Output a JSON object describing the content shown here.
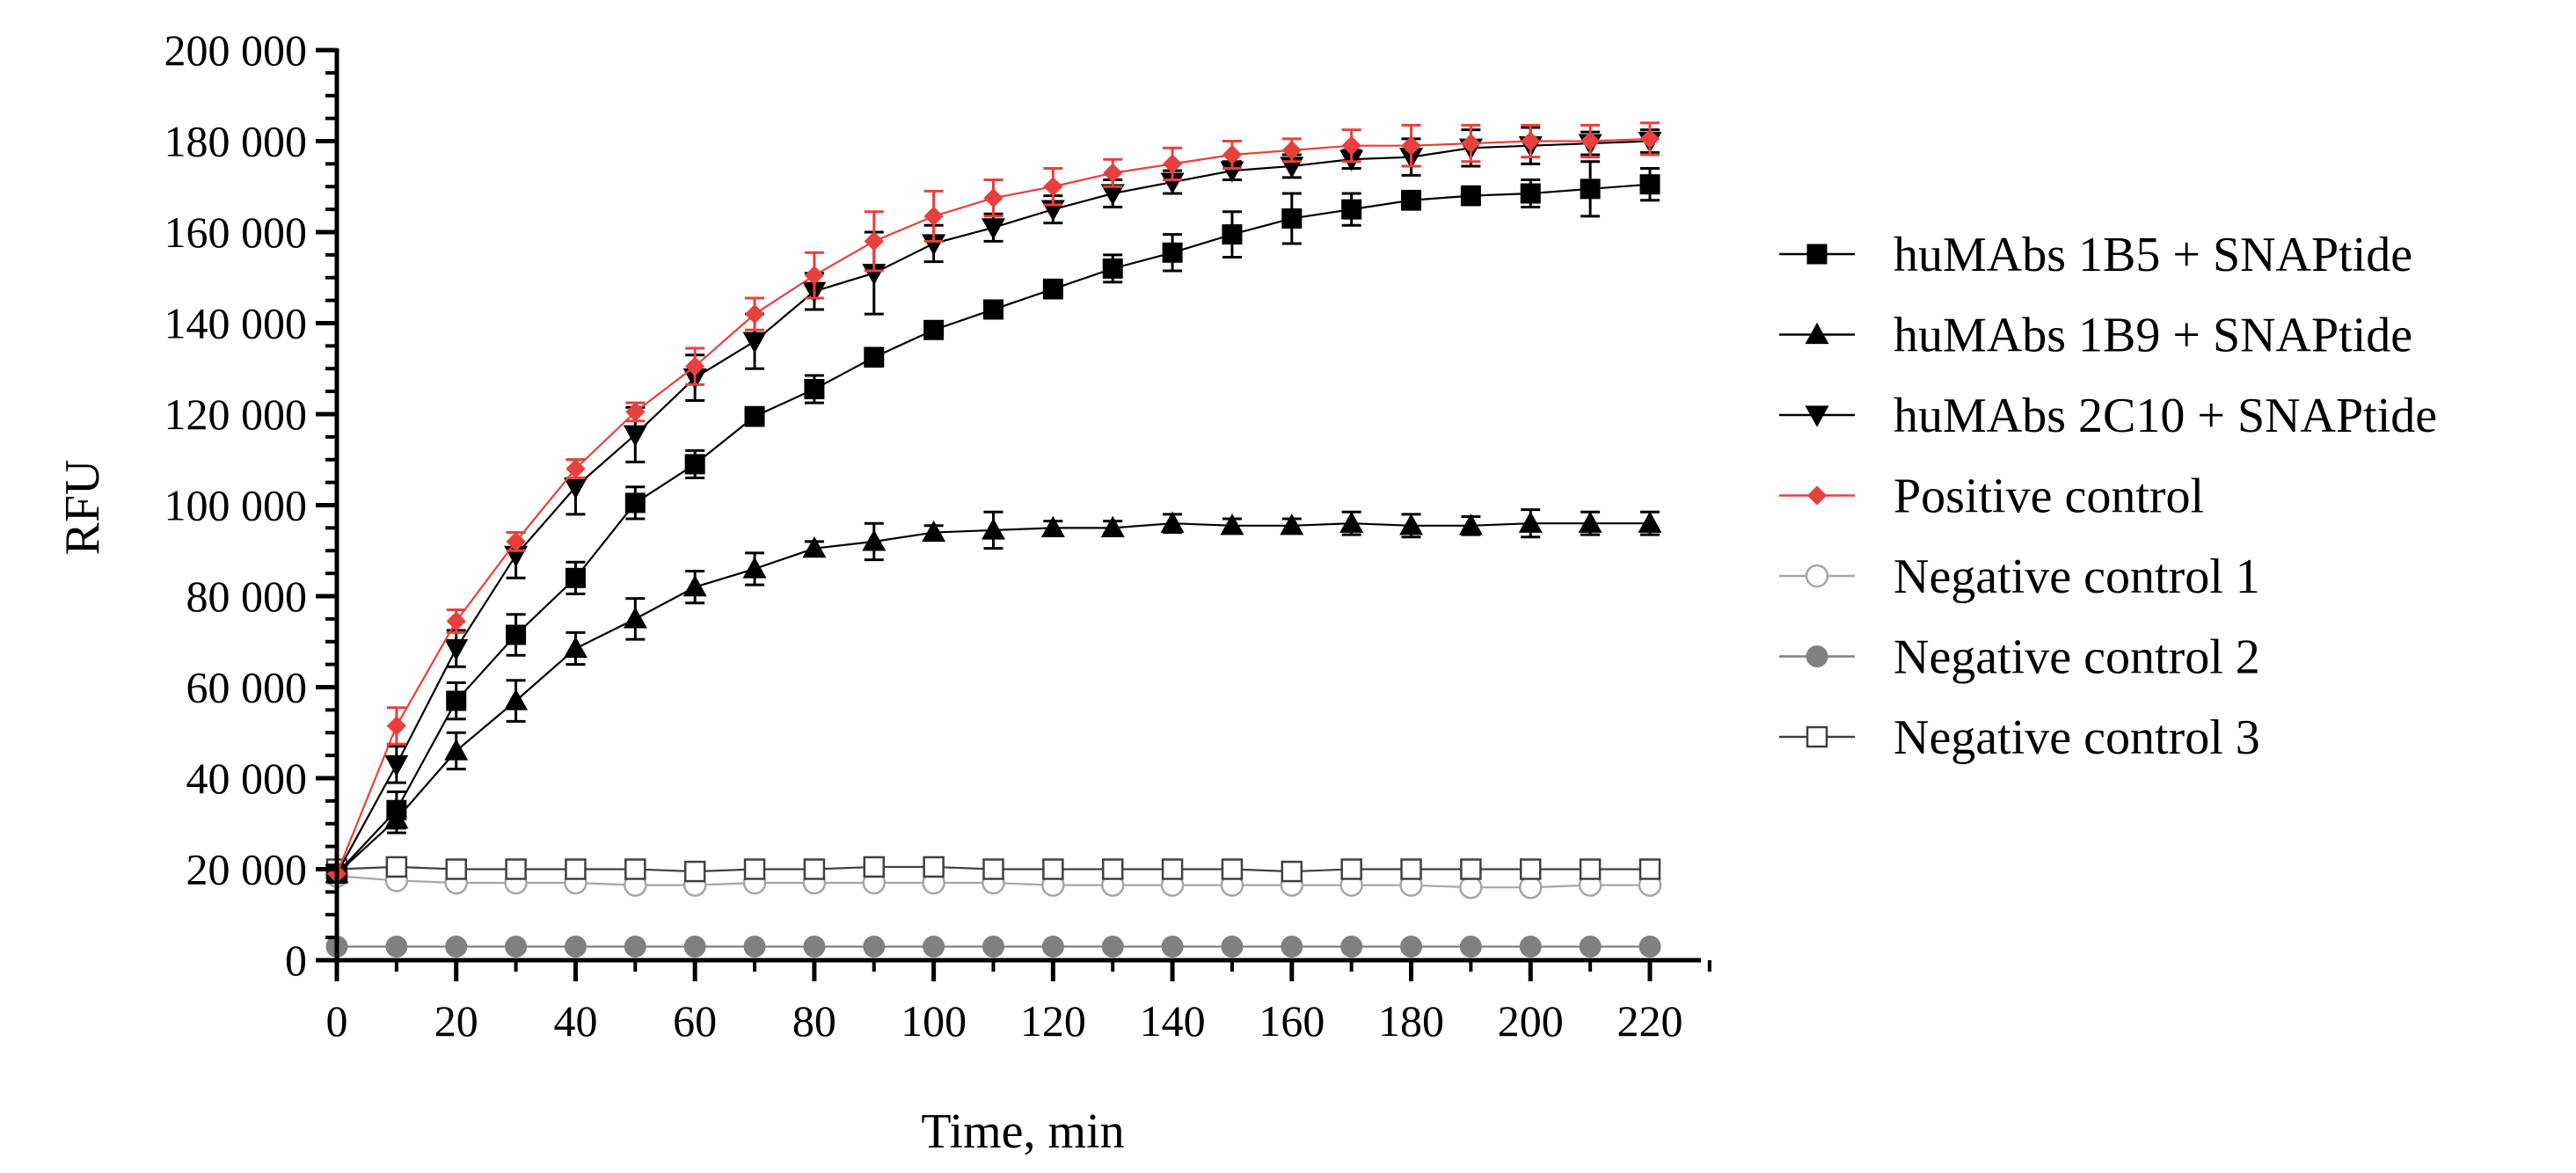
{
  "chart_data": {
    "type": "line",
    "title": "",
    "xlabel": "Time, min",
    "ylabel": "RFU",
    "xlim": [
      0,
      220
    ],
    "ylim": [
      0,
      200000
    ],
    "x_ticks": [
      0,
      20,
      40,
      60,
      80,
      100,
      120,
      140,
      160,
      180,
      200,
      220
    ],
    "x_tick_labels": [
      "0",
      "20",
      "40",
      "60",
      "80",
      "100",
      "120",
      "140",
      "160",
      "180",
      "200",
      "220"
    ],
    "y_ticks": [
      0,
      20000,
      40000,
      60000,
      80000,
      100000,
      120000,
      140000,
      160000,
      180000,
      200000
    ],
    "y_tick_labels": [
      "0",
      "20 000",
      "40 000",
      "60 000",
      "80 000",
      "100 000",
      "120 000",
      "140 000",
      "160 000",
      "180 000",
      "200 000"
    ],
    "legend_position": "right",
    "x": [
      0,
      10,
      20,
      30,
      40,
      50,
      60,
      70,
      80,
      90,
      100,
      110,
      120,
      130,
      140,
      150,
      160,
      170,
      180,
      190,
      200,
      210,
      220
    ],
    "series": [
      {
        "name": "huMAbs 1B5 + SNAPtide",
        "marker": "square-filled",
        "color": "#000000",
        "values": [
          19000,
          33000,
          57000,
          71500,
          84000,
          100500,
          109000,
          119500,
          125500,
          132500,
          138500,
          143000,
          147500,
          152000,
          155500,
          159500,
          163000,
          165000,
          167000,
          168000,
          168500,
          169500,
          170500
        ],
        "errors": [
          0,
          4000,
          4000,
          4500,
          3500,
          3500,
          3000,
          2000,
          3000,
          2000,
          1500,
          1500,
          2000,
          3000,
          4000,
          5000,
          5500,
          3500,
          2000,
          2000,
          3000,
          6000,
          3500
        ]
      },
      {
        "name": "huMAbs 1B9 + SNAPtide",
        "marker": "triangle-up-filled",
        "color": "#000000",
        "values": [
          19000,
          31000,
          46000,
          57000,
          68500,
          75000,
          82000,
          86000,
          90500,
          92000,
          94000,
          94500,
          95000,
          95000,
          96000,
          95500,
          95500,
          96000,
          95500,
          95500,
          96000,
          96000,
          96000
        ],
        "errors": [
          0,
          3000,
          4000,
          4500,
          3500,
          4500,
          3500,
          3500,
          1500,
          4000,
          1500,
          4000,
          1500,
          1500,
          2000,
          1500,
          1500,
          2500,
          2500,
          2000,
          3000,
          2500,
          2500
        ]
      },
      {
        "name": "huMAbs 2C10 + SNAPtide",
        "marker": "triangle-down-filled",
        "color": "#000000",
        "values": [
          19000,
          43000,
          68500,
          89000,
          104000,
          115500,
          128000,
          136000,
          147000,
          151000,
          157500,
          161000,
          165000,
          168500,
          171000,
          173500,
          174500,
          176000,
          176500,
          178500,
          179000,
          179500,
          180000
        ],
        "errors": [
          0,
          4000,
          4000,
          5000,
          6000,
          6000,
          5000,
          6000,
          4000,
          9000,
          4000,
          3000,
          3000,
          3000,
          2500,
          2000,
          2500,
          2000,
          4000,
          4000,
          4000,
          2500,
          2500
        ]
      },
      {
        "name": "Positive control",
        "marker": "diamond-filled",
        "color": "#e8403e",
        "values": [
          19000,
          51500,
          74500,
          92000,
          108000,
          120500,
          130500,
          142000,
          150500,
          158000,
          163500,
          167500,
          170000,
          173000,
          175000,
          177000,
          178000,
          179000,
          179000,
          179500,
          180000,
          180000,
          180500
        ],
        "errors": [
          0,
          4000,
          2500,
          2000,
          2000,
          2000,
          4000,
          3500,
          5000,
          6500,
          5500,
          4000,
          4000,
          3000,
          3500,
          3000,
          2500,
          3500,
          4500,
          4000,
          3500,
          3500,
          3500
        ]
      },
      {
        "name": "Negative control 1",
        "marker": "circle-open",
        "color": "#a6a6a6",
        "values": [
          18500,
          17500,
          17000,
          17000,
          17000,
          16500,
          16500,
          17000,
          17000,
          17000,
          17000,
          17000,
          16500,
          16500,
          16500,
          16500,
          16500,
          16500,
          16500,
          16000,
          16000,
          16500,
          16500
        ],
        "errors": [
          0,
          0,
          0,
          0,
          0,
          0,
          0,
          0,
          0,
          0,
          0,
          0,
          0,
          0,
          0,
          0,
          0,
          0,
          0,
          0,
          0,
          0,
          0
        ]
      },
      {
        "name": "Negative control 2",
        "marker": "circle-filled",
        "color": "#808080",
        "values": [
          3000,
          3000,
          3000,
          3000,
          3000,
          3000,
          3000,
          3000,
          3000,
          3000,
          3000,
          3000,
          3000,
          3000,
          3000,
          3000,
          3000,
          3000,
          3000,
          3000,
          3000,
          3000,
          3000
        ],
        "errors": [
          0,
          0,
          0,
          0,
          0,
          0,
          0,
          0,
          0,
          0,
          0,
          0,
          0,
          0,
          0,
          0,
          0,
          0,
          0,
          0,
          0,
          0,
          0
        ]
      },
      {
        "name": "Negative control 3",
        "marker": "square-open",
        "color": "#404040",
        "values": [
          20000,
          20500,
          20000,
          20000,
          20000,
          20000,
          19500,
          20000,
          20000,
          20500,
          20500,
          20000,
          20000,
          20000,
          20000,
          20000,
          19500,
          20000,
          20000,
          20000,
          20000,
          20000,
          20000
        ],
        "errors": [
          0,
          0,
          0,
          0,
          0,
          0,
          0,
          0,
          0,
          0,
          0,
          0,
          0,
          0,
          0,
          0,
          0,
          0,
          0,
          0,
          0,
          0,
          0
        ]
      }
    ]
  }
}
